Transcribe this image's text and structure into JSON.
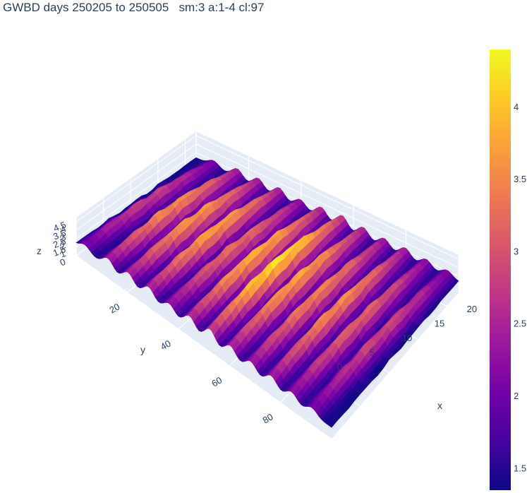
{
  "title": "GWBD days 250205 to 250505   sm:3 a:1-4 cl:97",
  "chart_data": {
    "type": "surface",
    "title": "GWBD days 250205 to 250505   sm:3 a:1-4 cl:97",
    "xlabel": "x",
    "ylabel": "y",
    "zlabel": "z",
    "x_ticks": [
      "0",
      "5",
      "10",
      "15",
      "20"
    ],
    "y_ticks": [
      "20",
      "40",
      "60",
      "80"
    ],
    "z_ticks": [
      "0",
      "1",
      "1.5",
      "2",
      "2.5",
      "3",
      "3.5",
      "4",
      "4.5"
    ],
    "xlim": [
      0,
      22
    ],
    "ylim": [
      0,
      100
    ],
    "zlim": [
      0,
      4.5
    ],
    "colorscale": "plasma",
    "colorbar": {
      "range": [
        1.35,
        4.4
      ],
      "ticks": [
        "1.5",
        "2",
        "2.5",
        "3",
        "3.5",
        "4"
      ],
      "tick_values": [
        1.5,
        2,
        2.5,
        3,
        3.5,
        4
      ],
      "colors": [
        "#0d0887",
        "#46039f",
        "#7201a8",
        "#9c179e",
        "#bd3786",
        "#d8576b",
        "#ed7953",
        "#fb9f3a",
        "#fdca26",
        "#f0f921"
      ]
    },
    "grid": true,
    "ridges_approx": [
      {
        "y": 5,
        "peak_z": 2.8
      },
      {
        "y": 14,
        "peak_z": 3.6
      },
      {
        "y": 22,
        "peak_z": 3.7
      },
      {
        "y": 30,
        "peak_z": 3.8
      },
      {
        "y": 38,
        "peak_z": 3.3
      },
      {
        "y": 46,
        "peak_z": 3.9
      },
      {
        "y": 54,
        "peak_z": 4.3
      },
      {
        "y": 62,
        "peak_z": 3.8
      },
      {
        "y": 70,
        "peak_z": 3.5
      },
      {
        "y": 78,
        "peak_z": 3.6
      },
      {
        "y": 86,
        "peak_z": 3.2
      },
      {
        "y": 94,
        "peak_z": 2.9
      }
    ]
  }
}
